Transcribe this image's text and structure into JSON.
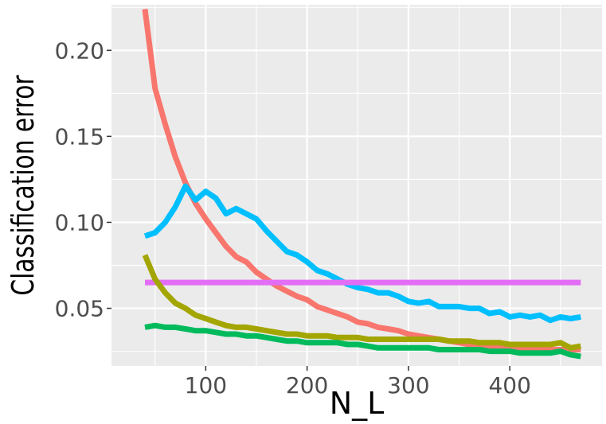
{
  "chart_data": {
    "type": "line",
    "title": "",
    "xlabel": "N_L",
    "ylabel": "Classification error",
    "xlim": [
      7,
      491
    ],
    "ylim": [
      0.0165,
      0.2265
    ],
    "x_ticks": [
      100,
      200,
      300,
      400
    ],
    "y_ticks": [
      0.05,
      0.1,
      0.15,
      0.2
    ],
    "x_tick_labels": [
      "100",
      "200",
      "300",
      "400"
    ],
    "y_tick_labels": [
      "0.05",
      "0.10",
      "0.15",
      "0.20"
    ],
    "grid": true,
    "legend": "none",
    "background": "#EBEBEB",
    "series": [
      {
        "color": "#F8766D",
        "x": [
          40,
          50,
          60,
          70,
          80,
          90,
          100,
          110,
          120,
          130,
          140,
          150,
          160,
          170,
          180,
          190,
          200,
          210,
          220,
          230,
          240,
          250,
          260,
          270,
          280,
          290,
          300,
          310,
          320,
          330,
          340,
          350,
          360,
          370,
          380,
          390,
          400,
          410,
          420,
          430,
          440,
          450,
          460,
          470
        ],
        "y": [
          0.224,
          0.178,
          0.157,
          0.138,
          0.123,
          0.111,
          0.102,
          0.094,
          0.086,
          0.08,
          0.077,
          0.071,
          0.067,
          0.063,
          0.06,
          0.057,
          0.055,
          0.051,
          0.049,
          0.047,
          0.045,
          0.042,
          0.041,
          0.039,
          0.038,
          0.037,
          0.035,
          0.034,
          0.033,
          0.032,
          0.031,
          0.03,
          0.029,
          0.029,
          0.028,
          0.028,
          0.027,
          0.027,
          0.027,
          0.027,
          0.026,
          0.026,
          0.026,
          0.026
        ]
      },
      {
        "color": "#00BFFF",
        "x": [
          40,
          50,
          60,
          70,
          80,
          90,
          100,
          110,
          120,
          130,
          140,
          150,
          160,
          170,
          180,
          190,
          200,
          210,
          220,
          230,
          240,
          250,
          260,
          270,
          280,
          290,
          300,
          310,
          320,
          330,
          340,
          350,
          360,
          370,
          380,
          390,
          400,
          410,
          420,
          430,
          440,
          450,
          460,
          470
        ],
        "y": [
          0.092,
          0.094,
          0.1,
          0.109,
          0.121,
          0.113,
          0.118,
          0.114,
          0.105,
          0.108,
          0.105,
          0.102,
          0.095,
          0.089,
          0.083,
          0.081,
          0.077,
          0.072,
          0.07,
          0.067,
          0.064,
          0.062,
          0.061,
          0.059,
          0.059,
          0.057,
          0.054,
          0.053,
          0.054,
          0.051,
          0.051,
          0.051,
          0.05,
          0.05,
          0.047,
          0.048,
          0.045,
          0.046,
          0.045,
          0.046,
          0.043,
          0.045,
          0.044,
          0.045
        ]
      },
      {
        "color": "#E36EF6",
        "x": [
          40,
          470
        ],
        "y": [
          0.065,
          0.065
        ]
      },
      {
        "color": "#A3A500",
        "x": [
          40,
          50,
          60,
          70,
          80,
          90,
          100,
          110,
          120,
          130,
          140,
          150,
          160,
          170,
          180,
          190,
          200,
          210,
          220,
          230,
          240,
          250,
          260,
          270,
          280,
          290,
          300,
          310,
          320,
          330,
          340,
          350,
          360,
          370,
          380,
          390,
          400,
          410,
          420,
          430,
          440,
          450,
          460,
          470
        ],
        "y": [
          0.081,
          0.067,
          0.059,
          0.053,
          0.05,
          0.046,
          0.044,
          0.042,
          0.04,
          0.039,
          0.039,
          0.038,
          0.037,
          0.036,
          0.035,
          0.035,
          0.034,
          0.034,
          0.034,
          0.033,
          0.033,
          0.033,
          0.032,
          0.032,
          0.032,
          0.032,
          0.032,
          0.032,
          0.032,
          0.032,
          0.031,
          0.031,
          0.031,
          0.03,
          0.03,
          0.03,
          0.029,
          0.029,
          0.029,
          0.029,
          0.029,
          0.03,
          0.027,
          0.028
        ]
      },
      {
        "color": "#00BA5C",
        "x": [
          40,
          50,
          60,
          70,
          80,
          90,
          100,
          110,
          120,
          130,
          140,
          150,
          160,
          170,
          180,
          190,
          200,
          210,
          220,
          230,
          240,
          250,
          260,
          270,
          280,
          290,
          300,
          310,
          320,
          330,
          340,
          350,
          360,
          370,
          380,
          390,
          400,
          410,
          420,
          430,
          440,
          450,
          460,
          470
        ],
        "y": [
          0.039,
          0.04,
          0.039,
          0.039,
          0.038,
          0.037,
          0.037,
          0.036,
          0.035,
          0.035,
          0.034,
          0.034,
          0.033,
          0.032,
          0.031,
          0.031,
          0.03,
          0.03,
          0.03,
          0.03,
          0.029,
          0.029,
          0.028,
          0.027,
          0.027,
          0.027,
          0.027,
          0.027,
          0.027,
          0.026,
          0.026,
          0.026,
          0.026,
          0.026,
          0.025,
          0.025,
          0.025,
          0.024,
          0.024,
          0.024,
          0.024,
          0.025,
          0.023,
          0.022
        ]
      }
    ]
  }
}
